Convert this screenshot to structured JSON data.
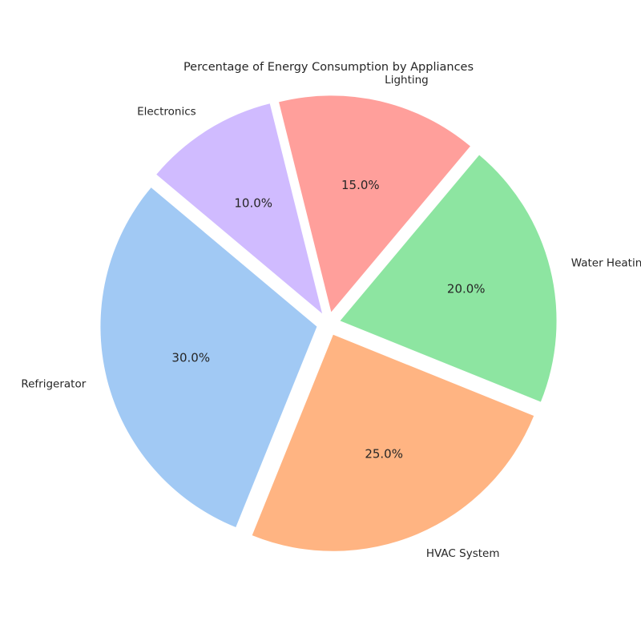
{
  "chart_data": {
    "type": "pie",
    "title": "Percentage of Energy Consumption by Appliances",
    "categories": [
      "Refrigerator",
      "HVAC System",
      "Water Heating",
      "Lighting",
      "Electronics"
    ],
    "values": [
      30,
      25,
      20,
      15,
      10
    ],
    "percent_labels": [
      "30.0%",
      "25.0%",
      "20.0%",
      "15.0%",
      "10.0%"
    ],
    "colors": [
      "#a1c9f4",
      "#ffb482",
      "#8de5a1",
      "#ff9f9b",
      "#d0bbff"
    ],
    "start_angle_deg": 140,
    "direction": "counterclockwise",
    "exploded": true
  }
}
